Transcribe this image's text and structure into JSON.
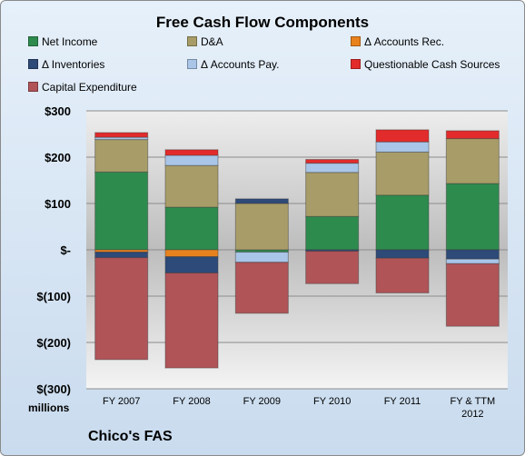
{
  "chart_data": {
    "type": "bar",
    "stacked": true,
    "title": "Free Cash Flow Components",
    "units_label": "millions",
    "company": "Chico's FAS",
    "categories": [
      "FY 2007",
      "FY 2008",
      "FY 2009",
      "FY 2010",
      "FY 2011",
      "FY & TTM 2012"
    ],
    "ylim": [
      -300,
      300
    ],
    "yticks": [
      300,
      200,
      100,
      0,
      -100,
      -200,
      -300
    ],
    "ytick_labels": [
      "$300",
      "$200",
      "$100",
      "$-",
      "$(100)",
      "$(200)",
      "$(300)"
    ],
    "grid": true,
    "legend_position": "top",
    "series": [
      {
        "name": "Net Income",
        "color": "#2e8b4e",
        "values": [
          168,
          92,
          -5,
          72,
          118,
          143
        ]
      },
      {
        "name": "D&A",
        "color": "#a89d68",
        "values": [
          70,
          90,
          100,
          95,
          93,
          97
        ]
      },
      {
        "name": "Δ Accounts Rec.",
        "color": "#e8821e",
        "values": [
          -5,
          -15,
          0,
          0,
          0,
          0
        ]
      },
      {
        "name": "Δ Inventories",
        "color": "#2d4a78",
        "values": [
          -12,
          -35,
          10,
          -3,
          -18,
          -20
        ]
      },
      {
        "name": "Δ Accounts Pay.",
        "color": "#a9c6e8",
        "values": [
          5,
          22,
          -22,
          20,
          22,
          -10
        ]
      },
      {
        "name": "Questionable Cash Sources",
        "color": "#e22b2b",
        "values": [
          10,
          12,
          0,
          8,
          26,
          17
        ]
      },
      {
        "name": "Capital Expenditure",
        "color": "#b05458",
        "values": [
          -220,
          -205,
          -110,
          -70,
          -75,
          -135
        ]
      }
    ]
  }
}
